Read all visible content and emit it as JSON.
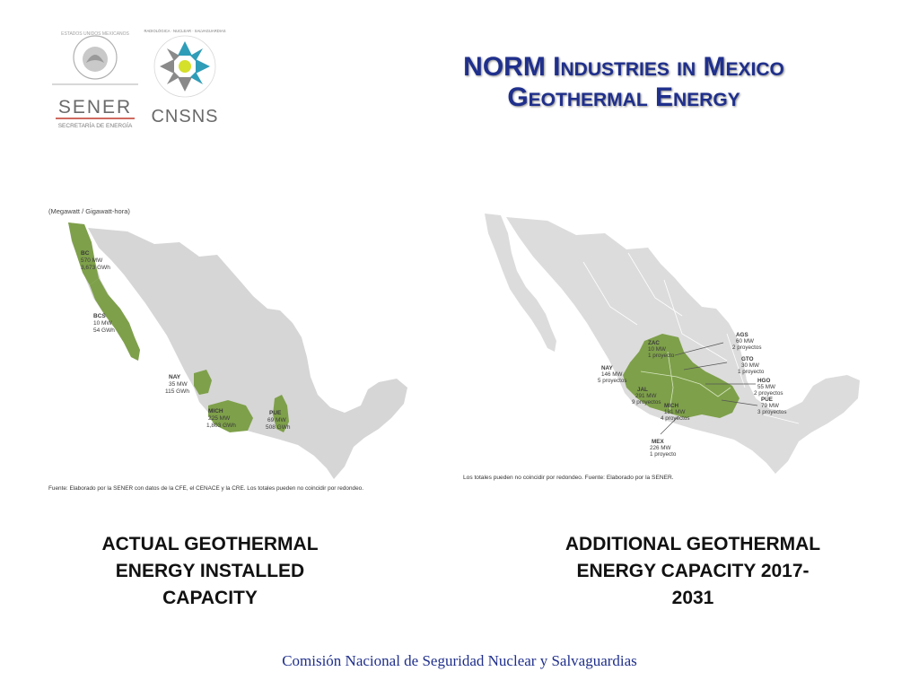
{
  "logos": {
    "sener": {
      "name": "SENER",
      "subtitle": "SECRETARÍA DE ENERGÍA",
      "seal_text": "ESTADOS UNIDOS MEXICANOS"
    },
    "cnsns": {
      "name": "CNSNS",
      "ring_text": "RADIOLÓGICA · NUCLEAR · SALVAGUARDIAS"
    }
  },
  "title": {
    "line1": "NORM Industries in Mexico",
    "line2": "Geothermal Energy"
  },
  "map_left": {
    "unit_note": "(Megawatt / Gigawatt-hora)",
    "regions": [
      {
        "code": "BC",
        "mw": "570 MW",
        "gwh": "3,673 GWh"
      },
      {
        "code": "BCS",
        "mw": "10 MW",
        "gwh": "54 GWh"
      },
      {
        "code": "NAY",
        "mw": "35 MW",
        "gwh": "115 GWh"
      },
      {
        "code": "MICH",
        "mw": "225 MW",
        "gwh": "1,803 GWh"
      },
      {
        "code": "PUE",
        "mw": "69 MW",
        "gwh": "508 GWh"
      }
    ],
    "source": "Fuente: Elaborado por la SENER con datos de la CFE, el CENACE y la CRE. Los totales pueden no coincidir por redondeo.",
    "colors": {
      "land": "#d6d6d6",
      "highlight": "#7ea04a"
    }
  },
  "map_right": {
    "regions": [
      {
        "code": "ZAC",
        "mw": "10 MW",
        "projects": "1 proyecto"
      },
      {
        "code": "NAY",
        "mw": "146 MW",
        "projects": "5 proyectos"
      },
      {
        "code": "JAL",
        "mw": "291 MW",
        "projects": "9 proyectos"
      },
      {
        "code": "MICH",
        "mw": "181 MW",
        "projects": "4 proyectos"
      },
      {
        "code": "MEX",
        "mw": "226 MW",
        "projects": "1 proyecto"
      },
      {
        "code": "AGS",
        "mw": "60 MW",
        "projects": "2 proyectos"
      },
      {
        "code": "GTO",
        "mw": "30 MW",
        "projects": "1 proyecto"
      },
      {
        "code": "HGO",
        "mw": "55 MW",
        "projects": "2 proyectos"
      },
      {
        "code": "PUE",
        "mw": "79 MW",
        "projects": "3 proyectos"
      }
    ],
    "source": "Los totales pueden no coincidir por redondeo. Fuente: Elaborado por la SENER.",
    "colors": {
      "land": "#dcdcdc",
      "highlight": "#7ea04a"
    }
  },
  "captions": {
    "left": "ACTUAL GEOTHERMAL ENERGY INSTALLED CAPACITY",
    "right": "ADDITIONAL GEOTHERMAL ENERGY CAPACITY 2017-2031"
  },
  "footer": "Comisión Nacional de Seguridad Nuclear y Salvaguardias"
}
